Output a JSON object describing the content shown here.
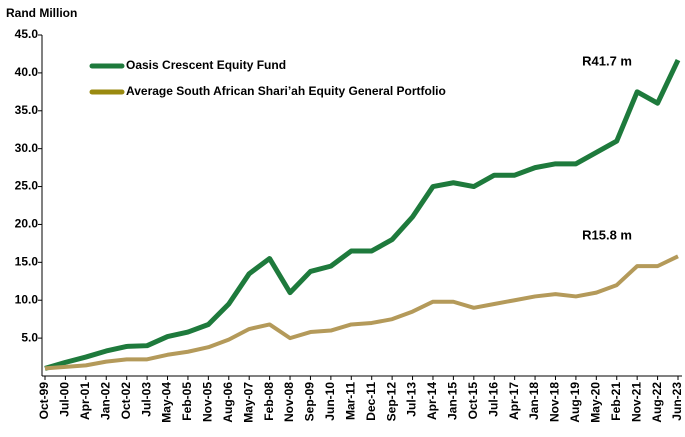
{
  "chart_data": {
    "type": "line",
    "y_label": "Rand Million",
    "categories": [
      "Oct-99",
      "Jul-00",
      "Apr-01",
      "Jan-02",
      "Oct-02",
      "Jul-03",
      "May-04",
      "Feb-05",
      "Nov-05",
      "Aug-06",
      "May-07",
      "Feb-08",
      "Nov-08",
      "Sep-09",
      "Jun-10",
      "Mar-11",
      "Dec-11",
      "Sep-12",
      "Jul-13",
      "Apr-14",
      "Jan-15",
      "Oct-15",
      "Jul-16",
      "Apr-17",
      "Jan-18",
      "Nov-18",
      "Aug-19",
      "May-20",
      "Feb-21",
      "Nov-21",
      "Aug-22",
      "Jun-23"
    ],
    "series": [
      {
        "name": "Oasis Crescent Equity Fund",
        "color": "#1e7a3c",
        "values": [
          1.0,
          1.8,
          2.5,
          3.3,
          3.9,
          4.0,
          5.2,
          5.8,
          6.8,
          9.5,
          13.5,
          15.5,
          11.0,
          13.8,
          14.5,
          16.5,
          16.5,
          18.0,
          21.0,
          25.0,
          25.5,
          25.0,
          26.5,
          26.5,
          27.5,
          28.0,
          28.0,
          29.5,
          31.0,
          37.5,
          36.0,
          41.7
        ]
      },
      {
        "name": "Average South African Shari’ah Equity General Portfolio",
        "color": "#b49a5a",
        "values": [
          1.0,
          1.2,
          1.4,
          1.9,
          2.2,
          2.2,
          2.8,
          3.2,
          3.8,
          4.8,
          6.2,
          6.8,
          5.0,
          5.8,
          6.0,
          6.8,
          7.0,
          7.5,
          8.5,
          9.8,
          9.8,
          9.0,
          9.5,
          10.0,
          10.5,
          10.8,
          10.5,
          11.0,
          12.0,
          14.5,
          14.5,
          15.8
        ]
      }
    ],
    "annotations": [
      {
        "text": "R41.7 m",
        "series": 0
      },
      {
        "text": "R15.8 m",
        "series": 1
      }
    ],
    "ylim": [
      0,
      45
    ],
    "yticks": [
      {
        "value": 5,
        "label": "5.0"
      },
      {
        "value": 10,
        "label": "10.0"
      },
      {
        "value": 15,
        "label": "15.0"
      },
      {
        "value": 20,
        "label": "20.0"
      },
      {
        "value": 25,
        "label": "25.0"
      },
      {
        "value": 30,
        "label": "30.0"
      },
      {
        "value": 35,
        "label": "35.0"
      },
      {
        "value": 40,
        "label": "40.0"
      },
      {
        "value": 45,
        "label": "45.0"
      }
    ],
    "legend": "top-left"
  }
}
